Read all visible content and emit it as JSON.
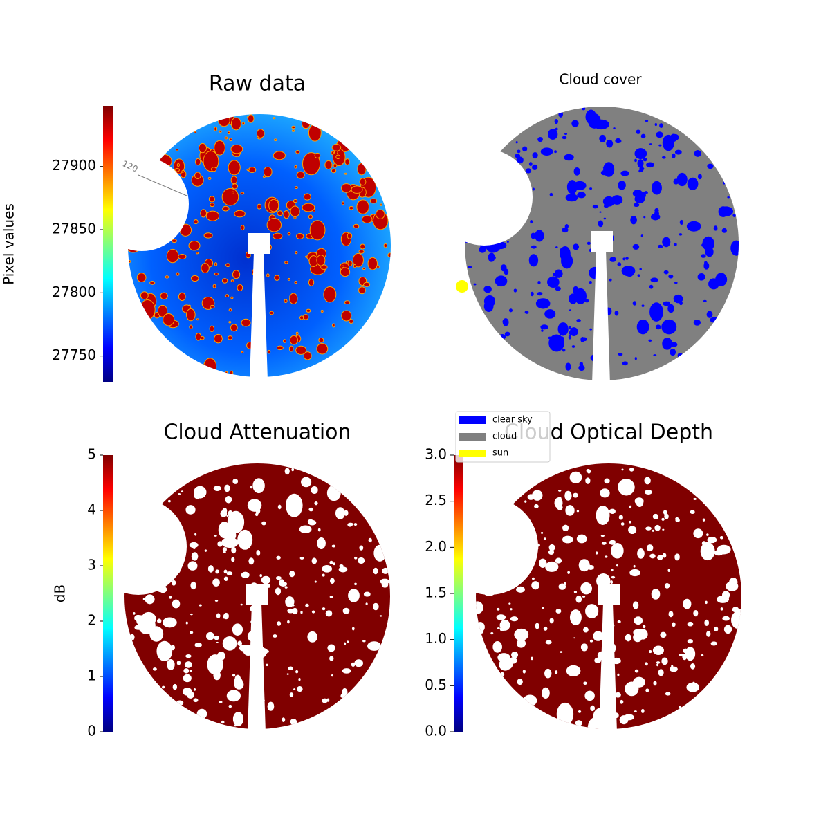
{
  "chart_data": [
    {
      "type": "image",
      "title": "Raw data",
      "ylabel": "Pixel values",
      "colormap": "jet",
      "ylim": [
        27729,
        27948
      ],
      "yticks": [
        27750,
        27800,
        27850,
        27900
      ],
      "annotations": [
        "120"
      ]
    },
    {
      "type": "image",
      "title": "Cloud cover",
      "legend": [
        {
          "name": "clear sky",
          "color": "#0000ff"
        },
        {
          "name": "cloud",
          "color": "#808080"
        },
        {
          "name": "sun",
          "color": "#ffff00"
        }
      ]
    },
    {
      "type": "image",
      "title": "Cloud Attenuation",
      "ylabel": "dB",
      "colormap": "jet",
      "ylim": [
        0,
        5
      ],
      "yticks": [
        0,
        1,
        2,
        3,
        4,
        5
      ]
    },
    {
      "type": "image",
      "title": "Cloud Optical Depth",
      "colormap": "jet",
      "ylim": [
        0,
        3
      ],
      "yticks": [
        {
          "value": 0,
          "label": "0.0"
        },
        0.5,
        {
          "value": 1,
          "label": "1.0"
        },
        1.5,
        {
          "value": 2,
          "label": "2.0"
        },
        2.5,
        {
          "value": 3,
          "label": "3.0"
        }
      ]
    }
  ]
}
